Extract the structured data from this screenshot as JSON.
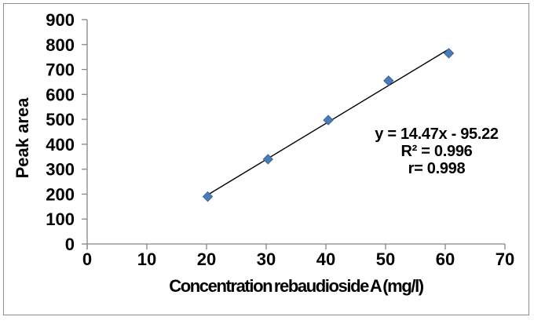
{
  "frame": {
    "border_color": "#8E8E8E",
    "background": "#FFFFFF"
  },
  "chart_data": {
    "type": "scatter",
    "title": "",
    "xlabel": "Concentration rebaudioside A (mg/l)",
    "ylabel": "Peak area",
    "x": [
      20.2,
      30.3,
      40.4,
      50.5,
      60.6
    ],
    "y": [
      190,
      340,
      497,
      655,
      765
    ],
    "xlim": [
      0,
      70
    ],
    "ylim": [
      0,
      900
    ],
    "x_ticks": [
      0,
      10,
      20,
      30,
      40,
      50,
      60,
      70
    ],
    "y_ticks": [
      0,
      100,
      200,
      300,
      400,
      500,
      600,
      700,
      800,
      900
    ],
    "grid": false,
    "legend": false,
    "marker": "diamond",
    "trendline": {
      "type": "linear",
      "slope": 14.47,
      "intercept": -95.22,
      "x_start": 20.2,
      "x_end": 60.6
    },
    "annotation": {
      "equation": "y = 14.47x - 95.22",
      "r_squared": "R² = 0.996",
      "r": "r= 0.998"
    },
    "colors": {
      "marker_fill": "#4C7CB8",
      "marker_border": "#3A6599",
      "trendline": "#000000",
      "axis_line": "#868686",
      "text": "#000000"
    }
  }
}
